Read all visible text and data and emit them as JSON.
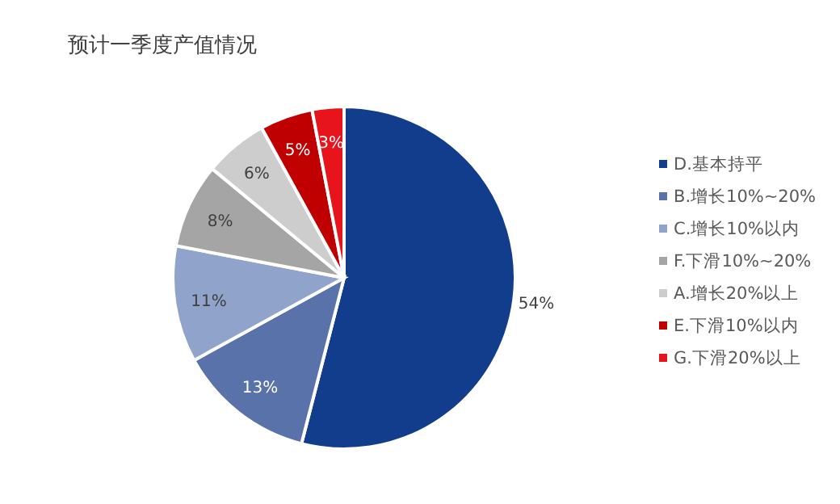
{
  "chart_data": {
    "type": "pie",
    "title": "预计一季度产值情况",
    "categories": [
      "D.基本持平",
      "B.增长10%~20%",
      "C.增长10%以内",
      "F.下滑10%~20%",
      "A.增长20%以上",
      "E.下滑10%以内",
      "G.下滑20%以上"
    ],
    "values": [
      54,
      13,
      11,
      8,
      6,
      5,
      3
    ],
    "colors": [
      "#123d8c",
      "#5a72aa",
      "#8fa3cb",
      "#a5a5a5",
      "#cdcdcd",
      "#c00000",
      "#e8141c"
    ],
    "value_labels": [
      "54%",
      "13%",
      "11%",
      "8%",
      "6%",
      "5%",
      "3%"
    ],
    "legend": "right"
  }
}
